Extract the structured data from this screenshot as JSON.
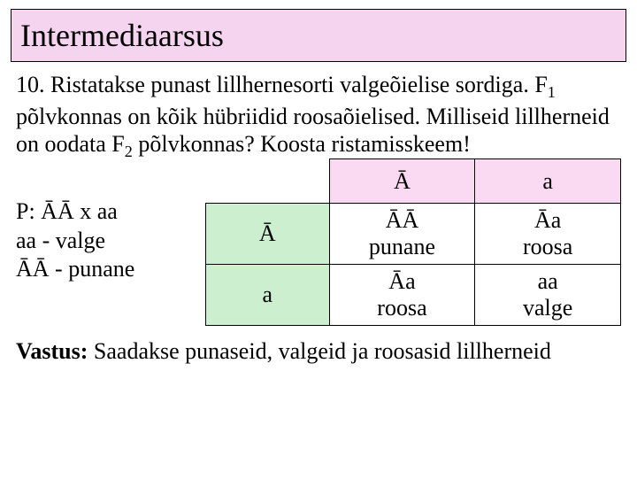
{
  "title": "Intermediaarsus",
  "question": {
    "text_html": "10. Ristatakse punast lillhernesorti valgeõielise sordiga. F<sub>1</sub> põlvkonnas on kõik hübriidid roosaõielised. Milliseid lillherneid on oodata F<sub>2</sub> põlvkonnas? Koosta ristamisskeem!"
  },
  "legend": {
    "line1": "P:  ĀĀ x aa",
    "line2": "aa -  valge",
    "line3": "ĀĀ - punane"
  },
  "punnett": {
    "col_headers": [
      "Ā",
      "a"
    ],
    "row_headers": [
      "Ā",
      "a"
    ],
    "cells": [
      [
        {
          "genotype": "ĀĀ",
          "phenotype": "punane"
        },
        {
          "genotype": "Āa",
          "phenotype": "roosa"
        }
      ],
      [
        {
          "genotype": "Āa",
          "phenotype": "roosa"
        },
        {
          "genotype": "aa",
          "phenotype": "valge"
        }
      ]
    ],
    "colors": {
      "pink": "#fadaf3",
      "green": "#ccf0cf",
      "border": "#000000",
      "background": "#ffffff"
    }
  },
  "answer": {
    "label": "Vastus:",
    "text": " Saadakse punaseid, valgeid ja roosasid lillherneid"
  }
}
